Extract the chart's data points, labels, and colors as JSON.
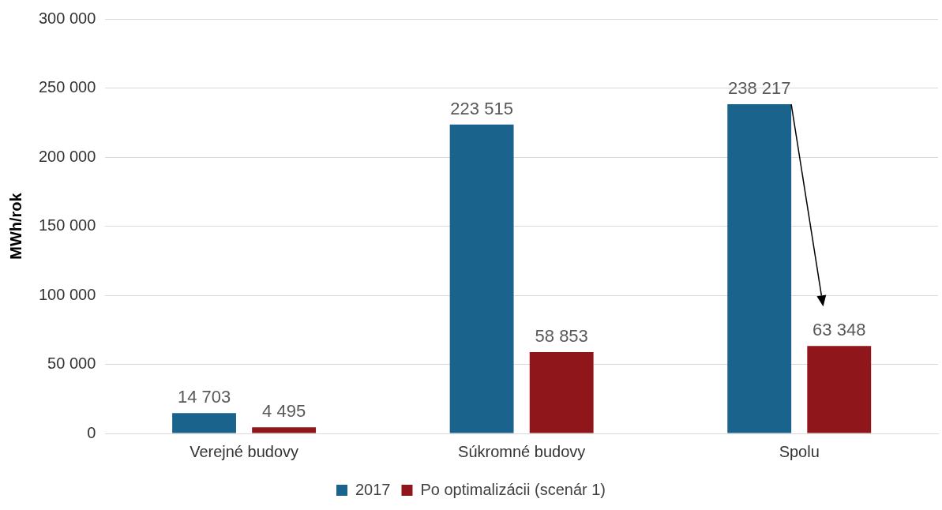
{
  "chart_data": {
    "type": "bar",
    "ylabel": "MWh/rok",
    "categories": [
      "Verejné budovy",
      "Súkromné budovy",
      "Spolu"
    ],
    "series": [
      {
        "name": "2017",
        "color": "#1a638c",
        "values": [
          14703,
          223515,
          238217
        ],
        "value_labels": [
          "14 703",
          "223 515",
          "238 217"
        ]
      },
      {
        "name": "Po optimalizácii (scenár 1)",
        "color": "#8f171b",
        "values": [
          4495,
          58853,
          63348
        ],
        "value_labels": [
          "4 495",
          "58 853",
          "63 348"
        ]
      }
    ],
    "ylim": [
      0,
      300000
    ],
    "yticks": [
      {
        "value": 0,
        "label": "0"
      },
      {
        "value": 50000,
        "label": "50 000"
      },
      {
        "value": 100000,
        "label": "100 000"
      },
      {
        "value": 150000,
        "label": "150 000"
      },
      {
        "value": 200000,
        "label": "200 000"
      },
      {
        "value": 250000,
        "label": "250 000"
      },
      {
        "value": 300000,
        "label": "300 000"
      }
    ],
    "grid": "y",
    "legend": "bottom"
  }
}
